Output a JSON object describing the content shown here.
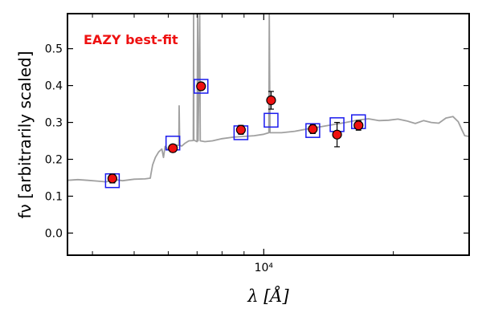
{
  "chart_data": {
    "type": "scatter",
    "annotation": "EAZY best-fit",
    "xlabel": "λ [Å]",
    "ylabel": "fν [arbitrarily scaled]",
    "x_scale": "log",
    "xlim": [
      3500,
      30000
    ],
    "ylim": [
      -0.06,
      0.595
    ],
    "yticks": [
      0.0,
      0.1,
      0.2,
      0.3,
      0.4,
      0.5
    ],
    "ytick_labels": [
      "0.0",
      "0.1",
      "0.2",
      "0.3",
      "0.4",
      "0.5"
    ],
    "xtick_major": [
      10000
    ],
    "xtick_major_labels": [
      "10⁴"
    ],
    "xtick_minor": [
      4000,
      5000,
      6000,
      7000,
      8000,
      9000,
      20000,
      30000
    ],
    "colors": {
      "template": "#a0a0a0",
      "observed_fill": "#ee1111",
      "model_box": "#1a1aee",
      "annotation": "#ee1111"
    },
    "series": [
      {
        "kind": "observed",
        "points": [
          {
            "x": 4450,
            "y": 0.148,
            "err": 0.012
          },
          {
            "x": 6150,
            "y": 0.23,
            "err": 0.01
          },
          {
            "x": 7150,
            "y": 0.398,
            "err": 0.008
          },
          {
            "x": 8850,
            "y": 0.28,
            "err": 0.012
          },
          {
            "x": 10400,
            "y": 0.36,
            "err": 0.024
          },
          {
            "x": 13000,
            "y": 0.282,
            "err": 0.012
          },
          {
            "x": 14800,
            "y": 0.267,
            "err": 0.033
          },
          {
            "x": 16600,
            "y": 0.292,
            "err": 0.013
          }
        ]
      },
      {
        "kind": "model",
        "points": [
          {
            "x": 4450,
            "y": 0.142
          },
          {
            "x": 6150,
            "y": 0.244
          },
          {
            "x": 7150,
            "y": 0.398
          },
          {
            "x": 8850,
            "y": 0.272
          },
          {
            "x": 10400,
            "y": 0.306
          },
          {
            "x": 13000,
            "y": 0.278
          },
          {
            "x": 14800,
            "y": 0.294
          },
          {
            "x": 16600,
            "y": 0.302
          }
        ]
      },
      {
        "kind": "template",
        "points": [
          [
            3500,
            0.143
          ],
          [
            3700,
            0.145
          ],
          [
            3900,
            0.143
          ],
          [
            4100,
            0.141
          ],
          [
            4300,
            0.139
          ],
          [
            4500,
            0.145
          ],
          [
            4700,
            0.142
          ],
          [
            5000,
            0.146
          ],
          [
            5300,
            0.147
          ],
          [
            5450,
            0.149
          ],
          [
            5470,
            0.16
          ],
          [
            5520,
            0.185
          ],
          [
            5600,
            0.205
          ],
          [
            5700,
            0.22
          ],
          [
            5800,
            0.228
          ],
          [
            5850,
            0.205
          ],
          [
            5900,
            0.235
          ],
          [
            6000,
            0.226
          ],
          [
            6100,
            0.232
          ],
          [
            6200,
            0.24
          ],
          [
            6300,
            0.238
          ],
          [
            6350,
            0.238
          ],
          [
            6360,
            0.345
          ],
          [
            6380,
            0.238
          ],
          [
            6450,
            0.236
          ],
          [
            6550,
            0.243
          ],
          [
            6700,
            0.25
          ],
          [
            6860,
            0.251
          ],
          [
            6870,
            0.595
          ],
          [
            6880,
            0.252
          ],
          [
            7000,
            0.248
          ],
          [
            7020,
            0.595
          ],
          [
            7040,
            0.25
          ],
          [
            7100,
            0.595
          ],
          [
            7120,
            0.25
          ],
          [
            7300,
            0.248
          ],
          [
            7600,
            0.25
          ],
          [
            8000,
            0.256
          ],
          [
            8500,
            0.26
          ],
          [
            9000,
            0.262
          ],
          [
            9500,
            0.264
          ],
          [
            10000,
            0.268
          ],
          [
            10280,
            0.272
          ],
          [
            10300,
            0.595
          ],
          [
            10340,
            0.272
          ],
          [
            11000,
            0.272
          ],
          [
            11800,
            0.276
          ],
          [
            12600,
            0.282
          ],
          [
            13500,
            0.288
          ],
          [
            14500,
            0.294
          ],
          [
            15500,
            0.3
          ],
          [
            16500,
            0.306
          ],
          [
            17500,
            0.31
          ],
          [
            18500,
            0.305
          ],
          [
            19500,
            0.306
          ],
          [
            20500,
            0.309
          ],
          [
            21500,
            0.304
          ],
          [
            22500,
            0.297
          ],
          [
            23500,
            0.305
          ],
          [
            24500,
            0.3
          ],
          [
            25500,
            0.298
          ],
          [
            26500,
            0.312
          ],
          [
            27500,
            0.316
          ],
          [
            28300,
            0.302
          ],
          [
            28800,
            0.282
          ],
          [
            29300,
            0.264
          ],
          [
            30000,
            0.262
          ]
        ]
      }
    ]
  }
}
